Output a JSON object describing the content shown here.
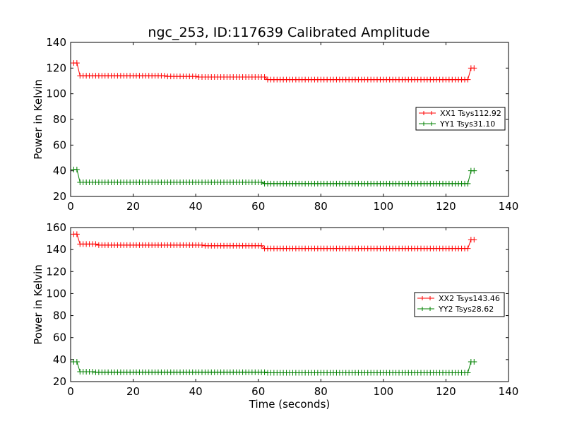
{
  "figure": {
    "title": "ngc_253, ID:117639 Calibrated Amplitude"
  },
  "chart_data": [
    {
      "type": "line",
      "xlabel": "",
      "ylabel": "Power in Kelvin",
      "xlim": [
        0,
        140
      ],
      "ylim": [
        20,
        140
      ],
      "xticks": [
        "0",
        "20",
        "40",
        "60",
        "80",
        "100",
        "120",
        "140"
      ],
      "yticks": [
        "20",
        "40",
        "60",
        "80",
        "100",
        "120",
        "140"
      ],
      "grid": false,
      "legend_position": "right",
      "series": [
        {
          "name": "XX1 Tsys112.92",
          "color": "#ff0000",
          "marker": "plus",
          "segments": [
            {
              "x0": 1,
              "x1": 2,
              "y": 124
            },
            {
              "x0": 3,
              "x1": 30,
              "y": 114
            },
            {
              "x0": 31,
              "x1": 40,
              "y": 113.5
            },
            {
              "x0": 41,
              "x1": 62,
              "y": 113
            },
            {
              "x0": 63,
              "x1": 127,
              "y": 111
            },
            {
              "x0": 128,
              "x1": 129,
              "y": 120
            }
          ]
        },
        {
          "name": "YY1 Tsys31.10",
          "color": "#008000",
          "marker": "plus",
          "segments": [
            {
              "x0": 1,
              "x1": 2,
              "y": 41
            },
            {
              "x0": 3,
              "x1": 61,
              "y": 31
            },
            {
              "x0": 62,
              "x1": 127,
              "y": 30
            },
            {
              "x0": 128,
              "x1": 129,
              "y": 40
            }
          ]
        }
      ]
    },
    {
      "type": "line",
      "xlabel": "Time (seconds)",
      "ylabel": "Power in Kelvin",
      "xlim": [
        0,
        140
      ],
      "ylim": [
        20,
        160
      ],
      "xticks": [
        "0",
        "20",
        "40",
        "60",
        "80",
        "100",
        "120",
        "140"
      ],
      "yticks": [
        "20",
        "40",
        "60",
        "80",
        "100",
        "120",
        "140",
        "160"
      ],
      "grid": false,
      "legend_position": "right",
      "series": [
        {
          "name": "XX2 Tsys143.46",
          "color": "#ff0000",
          "marker": "plus",
          "segments": [
            {
              "x0": 1,
              "x1": 2,
              "y": 154
            },
            {
              "x0": 3,
              "x1": 8,
              "y": 145
            },
            {
              "x0": 9,
              "x1": 42,
              "y": 144
            },
            {
              "x0": 43,
              "x1": 61,
              "y": 143.5
            },
            {
              "x0": 62,
              "x1": 127,
              "y": 141
            },
            {
              "x0": 128,
              "x1": 129,
              "y": 149
            }
          ]
        },
        {
          "name": "YY2 Tsys28.62",
          "color": "#008000",
          "marker": "plus",
          "segments": [
            {
              "x0": 1,
              "x1": 2,
              "y": 38
            },
            {
              "x0": 3,
              "x1": 7,
              "y": 29
            },
            {
              "x0": 8,
              "x1": 62,
              "y": 28.5
            },
            {
              "x0": 63,
              "x1": 127,
              "y": 28
            },
            {
              "x0": 128,
              "x1": 129,
              "y": 38
            }
          ]
        }
      ]
    }
  ]
}
